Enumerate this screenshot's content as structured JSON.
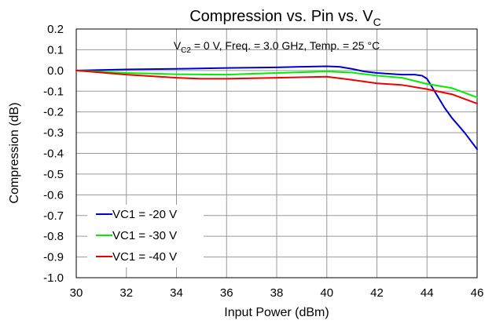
{
  "chart_data": {
    "type": "line",
    "title": "Compression vs. Pin vs. V",
    "title_subscript": "C",
    "annotation": {
      "prefix": "V",
      "subscript": "C2",
      "rest": " = 0 V, Freq. = 3.0 GHz, Temp. = 25 °C"
    },
    "xlabel": "Input Power (dBm)",
    "ylabel": "Compression (dB)",
    "xlim": [
      30,
      46
    ],
    "ylim": [
      -1.0,
      0.2
    ],
    "xticks": [
      30,
      32,
      34,
      36,
      38,
      40,
      42,
      44,
      46
    ],
    "yticks": [
      0.2,
      0.1,
      0.0,
      -0.1,
      -0.2,
      -0.3,
      -0.4,
      -0.5,
      -0.6,
      -0.7,
      -0.8,
      -0.9,
      -1.0
    ],
    "ytick_labels": [
      "0.2",
      "0.1",
      "0.0",
      "-0.1",
      "-0.2",
      "-0.3",
      "-0.4",
      "-0.5",
      "-0.6",
      "-0.7",
      "-0.8",
      "-0.9",
      "-1.0"
    ],
    "grid": true,
    "legend_position": "bottom-left",
    "series": [
      {
        "name": "VC1 = -20 V",
        "color": "#0000cc",
        "x": [
          30,
          32,
          34,
          36,
          38,
          39,
          40,
          40.5,
          41,
          41.5,
          42,
          43,
          43.5,
          43.8,
          44,
          44.3,
          44.7,
          45,
          45.5,
          46
        ],
        "y": [
          0.0,
          0.005,
          0.008,
          0.012,
          0.015,
          0.018,
          0.02,
          0.018,
          0.008,
          -0.005,
          -0.012,
          -0.02,
          -0.02,
          -0.025,
          -0.04,
          -0.1,
          -0.18,
          -0.23,
          -0.3,
          -0.38
        ]
      },
      {
        "name": "VC1 = -30 V",
        "color": "#00ee00",
        "x": [
          30,
          32,
          34,
          36,
          38,
          40,
          41,
          42,
          43,
          44,
          45,
          46
        ],
        "y": [
          0.0,
          -0.012,
          -0.018,
          -0.02,
          -0.012,
          -0.005,
          -0.01,
          -0.025,
          -0.035,
          -0.065,
          -0.085,
          -0.13
        ]
      },
      {
        "name": "VC1 = -40 V",
        "color": "#ee0000",
        "x": [
          30,
          32,
          34,
          35,
          36,
          38,
          40,
          41,
          42,
          43,
          44,
          45,
          46
        ],
        "y": [
          0.0,
          -0.02,
          -0.035,
          -0.04,
          -0.04,
          -0.035,
          -0.03,
          -0.045,
          -0.062,
          -0.07,
          -0.09,
          -0.115,
          -0.16
        ]
      }
    ]
  }
}
